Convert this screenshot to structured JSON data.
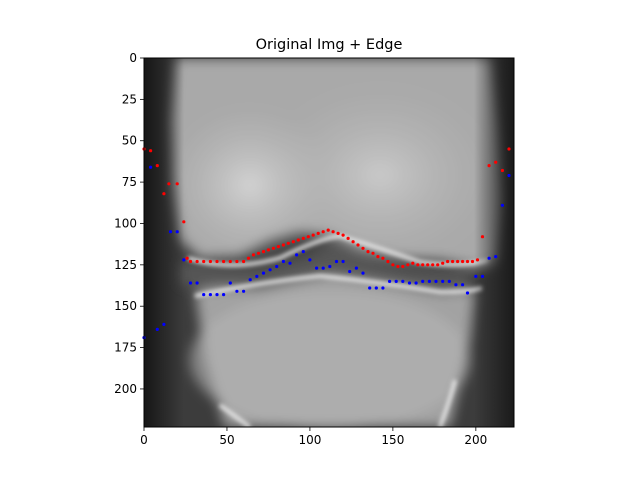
{
  "chart_data": {
    "type": "scatter",
    "title": "Original Img + Edge",
    "xlabel": "",
    "ylabel": "",
    "xlim": [
      0,
      223
    ],
    "ylim": [
      223,
      0
    ],
    "y_inverted": true,
    "grid": false,
    "background": "grayscale knee X-ray image",
    "xticks": [
      0,
      50,
      100,
      150,
      200
    ],
    "yticks": [
      0,
      25,
      50,
      75,
      100,
      125,
      150,
      175,
      200
    ],
    "colors": {
      "red": "#ff0000",
      "blue": "#0000ff"
    },
    "series": [
      {
        "color": "red",
        "points": [
          [
            0,
            55
          ],
          [
            4,
            56
          ],
          [
            8,
            65
          ],
          [
            12,
            82
          ],
          [
            15,
            76
          ],
          [
            20,
            76
          ],
          [
            24,
            99
          ],
          [
            26,
            121
          ],
          [
            28,
            123
          ],
          [
            32,
            123
          ],
          [
            36,
            123
          ],
          [
            40,
            123
          ],
          [
            44,
            123
          ],
          [
            48,
            123
          ],
          [
            52,
            123
          ],
          [
            56,
            123
          ],
          [
            60,
            123
          ],
          [
            63,
            121
          ],
          [
            66,
            119
          ],
          [
            69,
            118
          ],
          [
            72,
            117
          ],
          [
            75,
            116
          ],
          [
            78,
            115
          ],
          [
            81,
            114
          ],
          [
            84,
            113
          ],
          [
            87,
            112
          ],
          [
            90,
            111
          ],
          [
            93,
            110
          ],
          [
            96,
            109
          ],
          [
            99,
            108
          ],
          [
            102,
            107
          ],
          [
            105,
            106
          ],
          [
            108,
            105
          ],
          [
            111,
            104
          ],
          [
            114,
            105
          ],
          [
            117,
            106
          ],
          [
            120,
            107
          ],
          [
            123,
            109
          ],
          [
            126,
            111
          ],
          [
            129,
            113
          ],
          [
            132,
            115
          ],
          [
            135,
            117
          ],
          [
            138,
            118
          ],
          [
            141,
            120
          ],
          [
            144,
            121
          ],
          [
            147,
            123
          ],
          [
            150,
            125
          ],
          [
            153,
            126
          ],
          [
            156,
            126
          ],
          [
            159,
            125
          ],
          [
            162,
            124
          ],
          [
            165,
            125
          ],
          [
            168,
            125
          ],
          [
            171,
            125
          ],
          [
            174,
            125
          ],
          [
            177,
            125
          ],
          [
            180,
            124
          ],
          [
            183,
            123
          ],
          [
            186,
            123
          ],
          [
            189,
            123
          ],
          [
            192,
            123
          ],
          [
            195,
            123
          ],
          [
            198,
            123
          ],
          [
            201,
            122
          ],
          [
            204,
            108
          ],
          [
            208,
            65
          ],
          [
            212,
            63
          ],
          [
            216,
            68
          ],
          [
            220,
            55
          ]
        ]
      },
      {
        "color": "blue",
        "points": [
          [
            4,
            66
          ],
          [
            16,
            105
          ],
          [
            20,
            105
          ],
          [
            24,
            122
          ],
          [
            28,
            136
          ],
          [
            32,
            136
          ],
          [
            36,
            143
          ],
          [
            40,
            143
          ],
          [
            44,
            143
          ],
          [
            48,
            143
          ],
          [
            52,
            136
          ],
          [
            56,
            141
          ],
          [
            60,
            141
          ],
          [
            64,
            134
          ],
          [
            68,
            132
          ],
          [
            72,
            130
          ],
          [
            76,
            128
          ],
          [
            80,
            126
          ],
          [
            84,
            123
          ],
          [
            88,
            124
          ],
          [
            92,
            119
          ],
          [
            96,
            117
          ],
          [
            100,
            122
          ],
          [
            104,
            127
          ],
          [
            108,
            127
          ],
          [
            112,
            126
          ],
          [
            116,
            123
          ],
          [
            120,
            123
          ],
          [
            124,
            129
          ],
          [
            128,
            127
          ],
          [
            132,
            130
          ],
          [
            136,
            139
          ],
          [
            140,
            139
          ],
          [
            144,
            139
          ],
          [
            148,
            135
          ],
          [
            152,
            135
          ],
          [
            156,
            135
          ],
          [
            160,
            136
          ],
          [
            164,
            136
          ],
          [
            168,
            135
          ],
          [
            172,
            135
          ],
          [
            176,
            135
          ],
          [
            180,
            135
          ],
          [
            184,
            135
          ],
          [
            188,
            137
          ],
          [
            192,
            137
          ],
          [
            195,
            142
          ],
          [
            200,
            132
          ],
          [
            204,
            132
          ],
          [
            208,
            121
          ],
          [
            212,
            120
          ],
          [
            216,
            89
          ],
          [
            220,
            71
          ],
          [
            0,
            169
          ],
          [
            8,
            164
          ],
          [
            12,
            161
          ]
        ]
      }
    ]
  }
}
